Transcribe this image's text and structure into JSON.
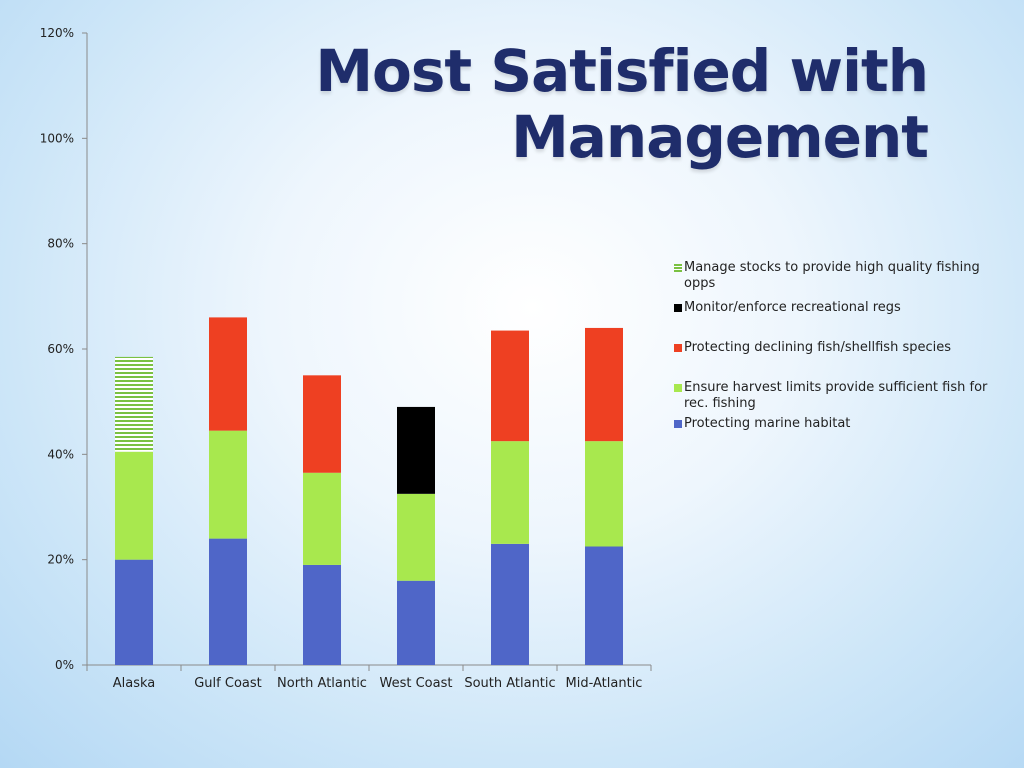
{
  "title": "Most Satisfied with Management",
  "chart_data": {
    "type": "bar",
    "stacked": true,
    "categories": [
      "Alaska",
      "Gulf Coast",
      "North Atlantic",
      "West Coast",
      "South Atlantic",
      "Mid-Atlantic"
    ],
    "y_ticks": [
      "0%",
      "20%",
      "40%",
      "60%",
      "80%",
      "100%",
      "120%"
    ],
    "ylim": [
      0,
      120
    ],
    "y_unit": "%",
    "grid": false,
    "legend_position": "right",
    "series": [
      {
        "name": "Protecting marine habitat",
        "color": "#4f66c8",
        "pattern": "solid",
        "values": [
          20,
          24,
          19,
          16,
          23,
          22.5
        ]
      },
      {
        "name": "Ensure harvest limits provide sufficient fish for rec. fishing",
        "color": "#a8e84e",
        "pattern": "solid",
        "values": [
          20.5,
          20.5,
          17.5,
          16.5,
          19.5,
          20
        ]
      },
      {
        "name": "Protecting declining fish/shellfish species",
        "color": "#ee4022",
        "pattern": "solid",
        "values": [
          0,
          21.5,
          18.5,
          0,
          21,
          21.5
        ]
      },
      {
        "name": "Monitor/enforce recreational regs",
        "color": "#000000",
        "pattern": "solid",
        "values": [
          0,
          0,
          0,
          16.5,
          0,
          0
        ]
      },
      {
        "name": "Manage stocks to provide high quality fishing opps",
        "color": "#7ac142",
        "pattern": "striped",
        "values": [
          18,
          0,
          0,
          0,
          0,
          0
        ]
      }
    ],
    "legend_order": [
      4,
      3,
      2,
      1,
      0
    ]
  }
}
